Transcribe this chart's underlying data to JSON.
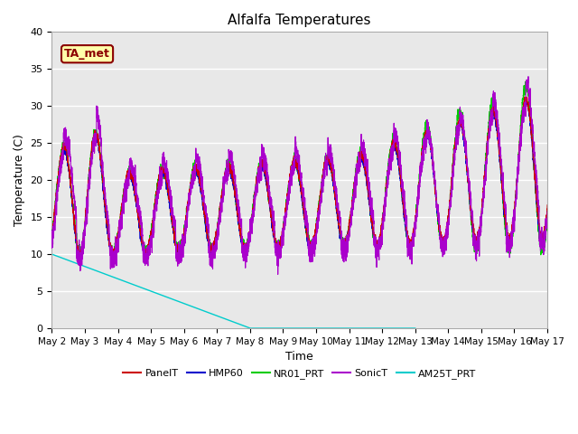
{
  "title": "Alfalfa Temperatures",
  "xlabel": "Time",
  "ylabel": "Temperature (C)",
  "ylim": [
    0,
    40
  ],
  "background_color": "#e8e8e8",
  "annotation_text": "TA_met",
  "annotation_color": "#8b0000",
  "annotation_bg": "#ffffaa",
  "series": {
    "PanelT": {
      "color": "#cc0000"
    },
    "HMP60": {
      "color": "#0000cc"
    },
    "NR01_PRT": {
      "color": "#00cc00"
    },
    "SonicT": {
      "color": "#aa00cc"
    },
    "AM25T_PRT": {
      "color": "#00cccc"
    }
  },
  "xtick_labels": [
    "May 2",
    "May 3",
    "May 4",
    "May 5",
    "May 6",
    "May 7",
    "May 8",
    "May 9",
    "May 10",
    "May 11",
    "May 12",
    "May 13",
    "May 14",
    "May 15",
    "May 16",
    "May 17"
  ],
  "xtick_positions": [
    2,
    3,
    4,
    5,
    6,
    7,
    8,
    9,
    10,
    11,
    12,
    13,
    14,
    15,
    16,
    17
  ],
  "ytick_labels": [
    "0",
    "5",
    "10",
    "15",
    "20",
    "25",
    "30",
    "35",
    "40"
  ],
  "ytick_positions": [
    0,
    5,
    10,
    15,
    20,
    25,
    30,
    35,
    40
  ],
  "legend_labels": [
    "PanelT",
    "HMP60",
    "NR01_PRT",
    "SonicT",
    "AM25T_PRT"
  ]
}
